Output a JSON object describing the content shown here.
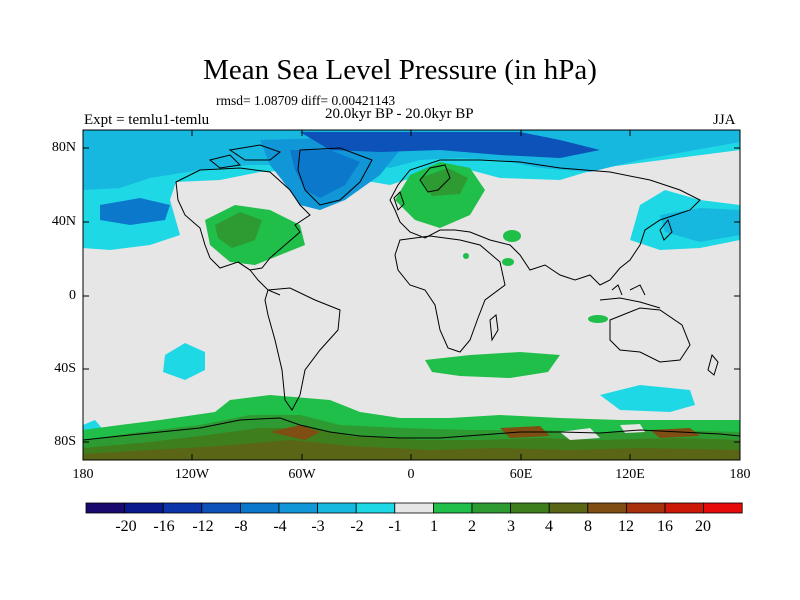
{
  "title": "Mean Sea Level Pressure (in hPa)",
  "stats": "rmsd= 1.08709 diff= 0.00421143",
  "experiment": "Expt = temlu1-temlu",
  "period": "20.0kyr BP - 20.0kyr BP",
  "season": "JJA",
  "lat_labels": [
    "80N",
    "40N",
    "0",
    "40S",
    "80S"
  ],
  "lon_labels": [
    "180",
    "120W",
    "60W",
    "0",
    "60E",
    "120E",
    "180"
  ],
  "colorbar": {
    "labels": [
      "-20",
      "-16",
      "-12",
      "-8",
      "-4",
      "-3",
      "-2",
      "-1",
      "1",
      "2",
      "3",
      "4",
      "8",
      "12",
      "16",
      "20"
    ],
    "colors": [
      "#1a0a6e",
      "#0a1a8c",
      "#0a34a8",
      "#0c52b8",
      "#0c78cc",
      "#1196d8",
      "#17b8e0",
      "#1fd8e6",
      "#e6e6e6",
      "#1fbf4a",
      "#2e9a32",
      "#3f7e1c",
      "#5a6616",
      "#7e4e12",
      "#a8300c",
      "#cc1806",
      "#e60a0a"
    ]
  },
  "colors": {
    "neutral": "#e6e6e6",
    "cyan": "#1fd8e6",
    "light_blue": "#17b8e0",
    "mid_blue": "#1196d8",
    "blue": "#0c78cc",
    "dark_blue": "#0c52b8",
    "green": "#1fbf4a",
    "mid_green": "#2e9a32",
    "dark_green": "#3f7e1c",
    "olive": "#5a6616",
    "brown": "#7e4e12"
  }
}
